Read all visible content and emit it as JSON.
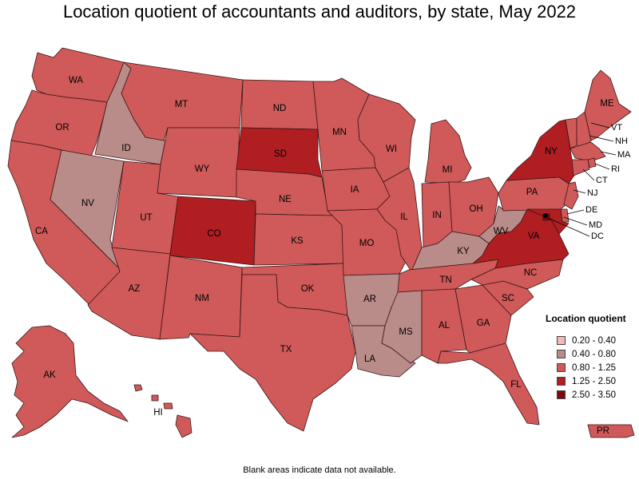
{
  "title": "Location quotient of accountants and auditors, by state, May 2022",
  "footnote": "Blank areas indicate data not available.",
  "legend": {
    "title": "Location quotient",
    "items": [
      {
        "label": "0.20 - 0.40",
        "color": "#f4b8b8"
      },
      {
        "label": "0.40 - 0.80",
        "color": "#b98c8a"
      },
      {
        "label": "0.80 - 1.25",
        "color": "#d05a5a"
      },
      {
        "label": "1.25 - 2.50",
        "color": "#b01e22"
      },
      {
        "label": "2.50 - 3.50",
        "color": "#7e0a0e"
      }
    ]
  },
  "states": [
    {
      "abbr": "WA",
      "class": "0.80 - 1.25"
    },
    {
      "abbr": "OR",
      "class": "0.80 - 1.25"
    },
    {
      "abbr": "CA",
      "class": "0.80 - 1.25"
    },
    {
      "abbr": "ID",
      "class": "0.40 - 0.80"
    },
    {
      "abbr": "NV",
      "class": "0.40 - 0.80"
    },
    {
      "abbr": "MT",
      "class": "0.80 - 1.25"
    },
    {
      "abbr": "WY",
      "class": "0.80 - 1.25"
    },
    {
      "abbr": "UT",
      "class": "0.80 - 1.25"
    },
    {
      "abbr": "AZ",
      "class": "0.80 - 1.25"
    },
    {
      "abbr": "CO",
      "class": "1.25 - 2.50"
    },
    {
      "abbr": "NM",
      "class": "0.80 - 1.25"
    },
    {
      "abbr": "ND",
      "class": "0.80 - 1.25"
    },
    {
      "abbr": "SD",
      "class": "1.25 - 2.50"
    },
    {
      "abbr": "NE",
      "class": "0.80 - 1.25"
    },
    {
      "abbr": "KS",
      "class": "0.80 - 1.25"
    },
    {
      "abbr": "OK",
      "class": "0.80 - 1.25"
    },
    {
      "abbr": "TX",
      "class": "0.80 - 1.25"
    },
    {
      "abbr": "MN",
      "class": "0.80 - 1.25"
    },
    {
      "abbr": "IA",
      "class": "0.80 - 1.25"
    },
    {
      "abbr": "MO",
      "class": "0.80 - 1.25"
    },
    {
      "abbr": "AR",
      "class": "0.40 - 0.80"
    },
    {
      "abbr": "LA",
      "class": "0.40 - 0.80"
    },
    {
      "abbr": "WI",
      "class": "0.80 - 1.25"
    },
    {
      "abbr": "IL",
      "class": "0.80 - 1.25"
    },
    {
      "abbr": "MI",
      "class": "0.80 - 1.25"
    },
    {
      "abbr": "IN",
      "class": "0.80 - 1.25"
    },
    {
      "abbr": "OH",
      "class": "0.80 - 1.25"
    },
    {
      "abbr": "KY",
      "class": "0.40 - 0.80"
    },
    {
      "abbr": "TN",
      "class": "0.80 - 1.25"
    },
    {
      "abbr": "MS",
      "class": "0.40 - 0.80"
    },
    {
      "abbr": "AL",
      "class": "0.80 - 1.25"
    },
    {
      "abbr": "GA",
      "class": "0.80 - 1.25"
    },
    {
      "abbr": "FL",
      "class": "0.80 - 1.25"
    },
    {
      "abbr": "SC",
      "class": "0.80 - 1.25"
    },
    {
      "abbr": "NC",
      "class": "0.80 - 1.25"
    },
    {
      "abbr": "VA",
      "class": "1.25 - 2.50"
    },
    {
      "abbr": "WV",
      "class": "0.40 - 0.80"
    },
    {
      "abbr": "PA",
      "class": "0.80 - 1.25"
    },
    {
      "abbr": "NY",
      "class": "1.25 - 2.50"
    },
    {
      "abbr": "VT",
      "class": "0.80 - 1.25"
    },
    {
      "abbr": "NH",
      "class": "0.80 - 1.25"
    },
    {
      "abbr": "ME",
      "class": "0.80 - 1.25"
    },
    {
      "abbr": "MA",
      "class": "0.80 - 1.25"
    },
    {
      "abbr": "RI",
      "class": "0.80 - 1.25"
    },
    {
      "abbr": "CT",
      "class": "0.80 - 1.25"
    },
    {
      "abbr": "NJ",
      "class": "0.80 - 1.25"
    },
    {
      "abbr": "DE",
      "class": "0.80 - 1.25"
    },
    {
      "abbr": "MD",
      "class": "1.25 - 2.50"
    },
    {
      "abbr": "DC",
      "class": "2.50 - 3.50"
    },
    {
      "abbr": "AK",
      "class": "0.80 - 1.25"
    },
    {
      "abbr": "HI",
      "class": "0.80 - 1.25"
    },
    {
      "abbr": "PR",
      "class": "0.80 - 1.25"
    }
  ]
}
